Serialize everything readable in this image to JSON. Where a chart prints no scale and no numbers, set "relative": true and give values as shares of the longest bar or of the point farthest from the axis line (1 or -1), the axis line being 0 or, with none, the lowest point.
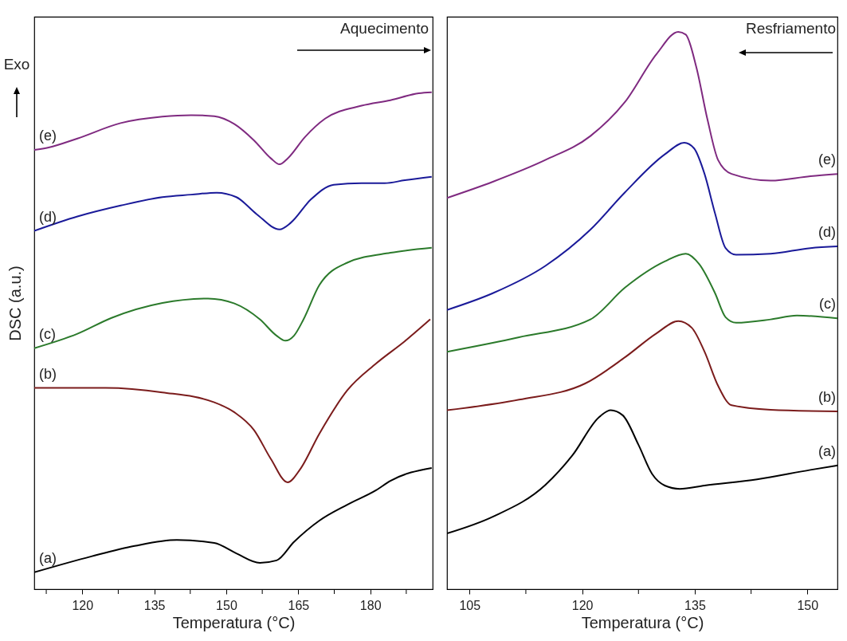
{
  "chart_data": [
    {
      "type": "line",
      "relative": true,
      "xlabel": "Temperatura (°C)",
      "ylabel": "DSC (a.u.)",
      "annotations": [
        "Exo",
        "Aquecimento"
      ],
      "xlim": [
        110,
        193
      ],
      "xticks": [
        {
          "value": 112.5,
          "label": null
        },
        120,
        {
          "value": 127.5,
          "label": null
        },
        135,
        {
          "value": 142.5,
          "label": null
        },
        150,
        {
          "value": 157.5,
          "label": null
        },
        165,
        {
          "value": 172.5,
          "label": null
        },
        180,
        {
          "value": 187.5,
          "label": null
        }
      ],
      "series": [
        {
          "name": "(e)",
          "color": "#7f2a80",
          "x": [
            110,
            113,
            119,
            128,
            136.7,
            142.7,
            147.5,
            151.7,
            155.8,
            159.3,
            161.1,
            162.8,
            166.4,
            170.6,
            178.2,
            184.2,
            190.1,
            192.8
          ],
          "values": [
            0.884,
            0.889,
            0.907,
            0.938,
            0.951,
            0.954,
            0.952,
            0.936,
            0.903,
            0.867,
            0.855,
            0.867,
            0.91,
            0.947,
            0.973,
            0.984,
            0.998,
            1.0
          ]
        },
        {
          "name": "(d)",
          "color": "#1a1a99",
          "x": [
            110,
            119,
            128,
            136.7,
            142.7,
            148,
            152.1,
            156.3,
            161.1,
            163.4,
            167.6,
            172.4,
            178.2,
            183,
            187.2,
            192.8
          ],
          "values": [
            0.721,
            0.75,
            0.772,
            0.789,
            0.794,
            0.798,
            0.789,
            0.755,
            0.724,
            0.737,
            0.784,
            0.814,
            0.817,
            0.817,
            0.823,
            0.83
          ]
        },
        {
          "name": "(c)",
          "color": "#2b7a2b",
          "x": [
            110,
            119,
            126.1,
            136.7,
            146.2,
            151.7,
            157,
            160.5,
            162.3,
            164.1,
            166.1,
            169.4,
            175.2,
            184.2,
            192.8
          ],
          "values": [
            0.485,
            0.514,
            0.546,
            0.576,
            0.585,
            0.575,
            0.543,
            0.51,
            0.5,
            0.51,
            0.543,
            0.612,
            0.657,
            0.677,
            0.687
          ]
        },
        {
          "name": "(b)",
          "color": "#7b1c1c",
          "x": [
            110,
            124.9,
            136.7,
            147.5,
            151.7,
            155.8,
            159.3,
            162.8,
            165.3,
            169.4,
            175.2,
            181.2,
            187.2,
            192.5
          ],
          "values": [
            0.405,
            0.405,
            0.396,
            0.376,
            0.356,
            0.32,
            0.262,
            0.215,
            0.24,
            0.313,
            0.4,
            0.454,
            0.499,
            0.543
          ]
        },
        {
          "name": "(a)",
          "color": "#000000",
          "x": [
            110,
            121.9,
            130.9,
            139.7,
            147.5,
            152.1,
            157,
            160.5,
            164.1,
            169.4,
            175.2,
            181.2,
            184.2,
            192.8
          ],
          "values": [
            0.034,
            0.066,
            0.087,
            0.099,
            0.093,
            0.072,
            0.053,
            0.058,
            0.095,
            0.138,
            0.17,
            0.199,
            0.218,
            0.244
          ]
        }
      ]
    },
    {
      "type": "line",
      "relative": true,
      "xlabel": "Temperatura (°C)",
      "annotations": [
        "Resfriamento"
      ],
      "xlim": [
        102,
        154
      ],
      "xticks": [
        105,
        {
          "value": 112.5,
          "label": null
        },
        120,
        {
          "value": 127.5,
          "label": null
        },
        135,
        {
          "value": 142.5,
          "label": null
        },
        150
      ],
      "series": [
        {
          "name": "(e)",
          "color": "#7f2a80",
          "x": [
            102,
            108.1,
            115.1,
            121.1,
            125.7,
            129.9,
            132.8,
            133.8,
            135.2,
            136.7,
            138.1,
            139.9,
            145.1,
            150.4,
            154
          ],
          "values": [
            0.702,
            0.731,
            0.77,
            0.813,
            0.874,
            0.96,
            1.0,
            0.995,
            0.937,
            0.842,
            0.77,
            0.745,
            0.733,
            0.741,
            0.745
          ]
        },
        {
          "name": "(d)",
          "color": "#1a1a99",
          "x": [
            102,
            108.1,
            115.1,
            121.1,
            125.7,
            131,
            133.6,
            134.9,
            136.3,
            137.7,
            139.1,
            140.5,
            145.1,
            150.4,
            154
          ],
          "values": [
            0.501,
            0.531,
            0.58,
            0.645,
            0.712,
            0.78,
            0.801,
            0.791,
            0.745,
            0.674,
            0.612,
            0.6,
            0.602,
            0.612,
            0.615
          ]
        },
        {
          "name": "(c)",
          "color": "#2b7a2b",
          "x": [
            102,
            111.6,
            121.1,
            125.7,
            131,
            133.8,
            135.6,
            137.7,
            139.1,
            140.5,
            145.1,
            148.6,
            154
          ],
          "values": [
            0.426,
            0.452,
            0.484,
            0.541,
            0.588,
            0.602,
            0.583,
            0.531,
            0.488,
            0.478,
            0.484,
            0.491,
            0.486
          ]
        },
        {
          "name": "(b)",
          "color": "#7b1c1c",
          "x": [
            102,
            111.6,
            120.4,
            125.7,
            129.9,
            132.8,
            134.6,
            136.3,
            138.1,
            139.9,
            145.1,
            154
          ],
          "values": [
            0.321,
            0.34,
            0.369,
            0.416,
            0.459,
            0.481,
            0.469,
            0.426,
            0.365,
            0.33,
            0.322,
            0.319
          ]
        },
        {
          "name": "(a)",
          "color": "#000000",
          "x": [
            102,
            108.1,
            115.1,
            118.7,
            122.2,
            123.8,
            125.4,
            127.5,
            129.3,
            131,
            133,
            136.3,
            143.3,
            150.4,
            154
          ],
          "values": [
            0.1,
            0.13,
            0.187,
            0.24,
            0.308,
            0.321,
            0.312,
            0.259,
            0.207,
            0.186,
            0.18,
            0.186,
            0.197,
            0.214,
            0.222
          ]
        }
      ]
    }
  ]
}
